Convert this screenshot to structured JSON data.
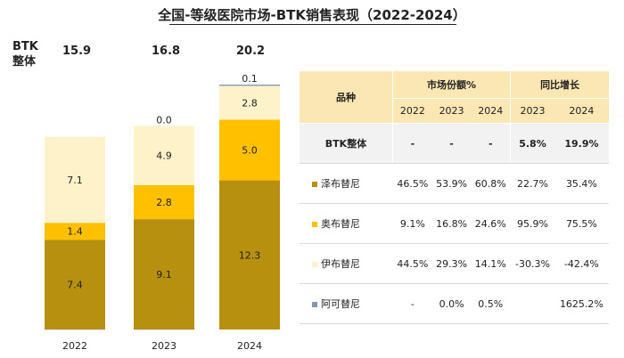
{
  "title": "全国-等级医院市场-BTK销售表现（2022-2024）",
  "btk_total_label": "BTK\n整体",
  "colors": {
    "zanubrutinib": "#b8900f",
    "orelabrutinib": "#ffc000",
    "ibrutinib": "#fef2cb",
    "acalabrutinib": "#8497b0"
  },
  "chart_data": {
    "type": "bar",
    "stacked": true,
    "categories": [
      "2022",
      "2023",
      "2024"
    ],
    "totals": [
      "15.9",
      "16.8",
      "20.2"
    ],
    "series": [
      {
        "name": "泽布替尼",
        "color": "#b8900f",
        "values": [
          7.4,
          9.1,
          12.3
        ],
        "labels": [
          "7.4",
          "9.1",
          "12.3"
        ]
      },
      {
        "name": "奥布替尼",
        "color": "#ffc000",
        "values": [
          1.4,
          2.8,
          5.0
        ],
        "labels": [
          "1.4",
          "2.8",
          "5.0"
        ]
      },
      {
        "name": "伊布替尼",
        "color": "#fef2cb",
        "values": [
          7.1,
          4.9,
          2.8
        ],
        "labels": [
          "7.1",
          "4.9",
          "2.8"
        ]
      },
      {
        "name": "阿可替尼",
        "color": "#8497b0",
        "values": [
          0.0,
          0.0,
          0.1
        ],
        "labels": [
          "",
          "0.0",
          "0.1"
        ]
      }
    ],
    "ylim": [
      0,
      20.2
    ]
  },
  "table": {
    "header_variety": "品种",
    "header_share": "市场份额%",
    "header_growth": "同比增长",
    "years_share": [
      "2022",
      "2023",
      "2024"
    ],
    "years_growth": [
      "2023",
      "2024"
    ],
    "rows": [
      {
        "name": "BTK整体",
        "swatch": "",
        "cells": [
          "-",
          "-",
          "-",
          "5.8%",
          "19.9%"
        ]
      },
      {
        "name": "泽布替尼",
        "swatch": "#b8900f",
        "cells": [
          "46.5%",
          "53.9%",
          "60.8%",
          "22.7%",
          "35.4%"
        ]
      },
      {
        "name": "奥布替尼",
        "swatch": "#ffc000",
        "cells": [
          "9.1%",
          "16.8%",
          "24.6%",
          "95.9%",
          "75.5%"
        ]
      },
      {
        "name": "伊布替尼",
        "swatch": "#fef2cb",
        "cells": [
          "44.5%",
          "29.3%",
          "14.1%",
          "-30.3%",
          "-42.4%"
        ]
      },
      {
        "name": "阿可替尼",
        "swatch": "#8497b0",
        "cells": [
          "-",
          "0.0%",
          "0.5%",
          "",
          "1625.2%"
        ]
      }
    ]
  }
}
